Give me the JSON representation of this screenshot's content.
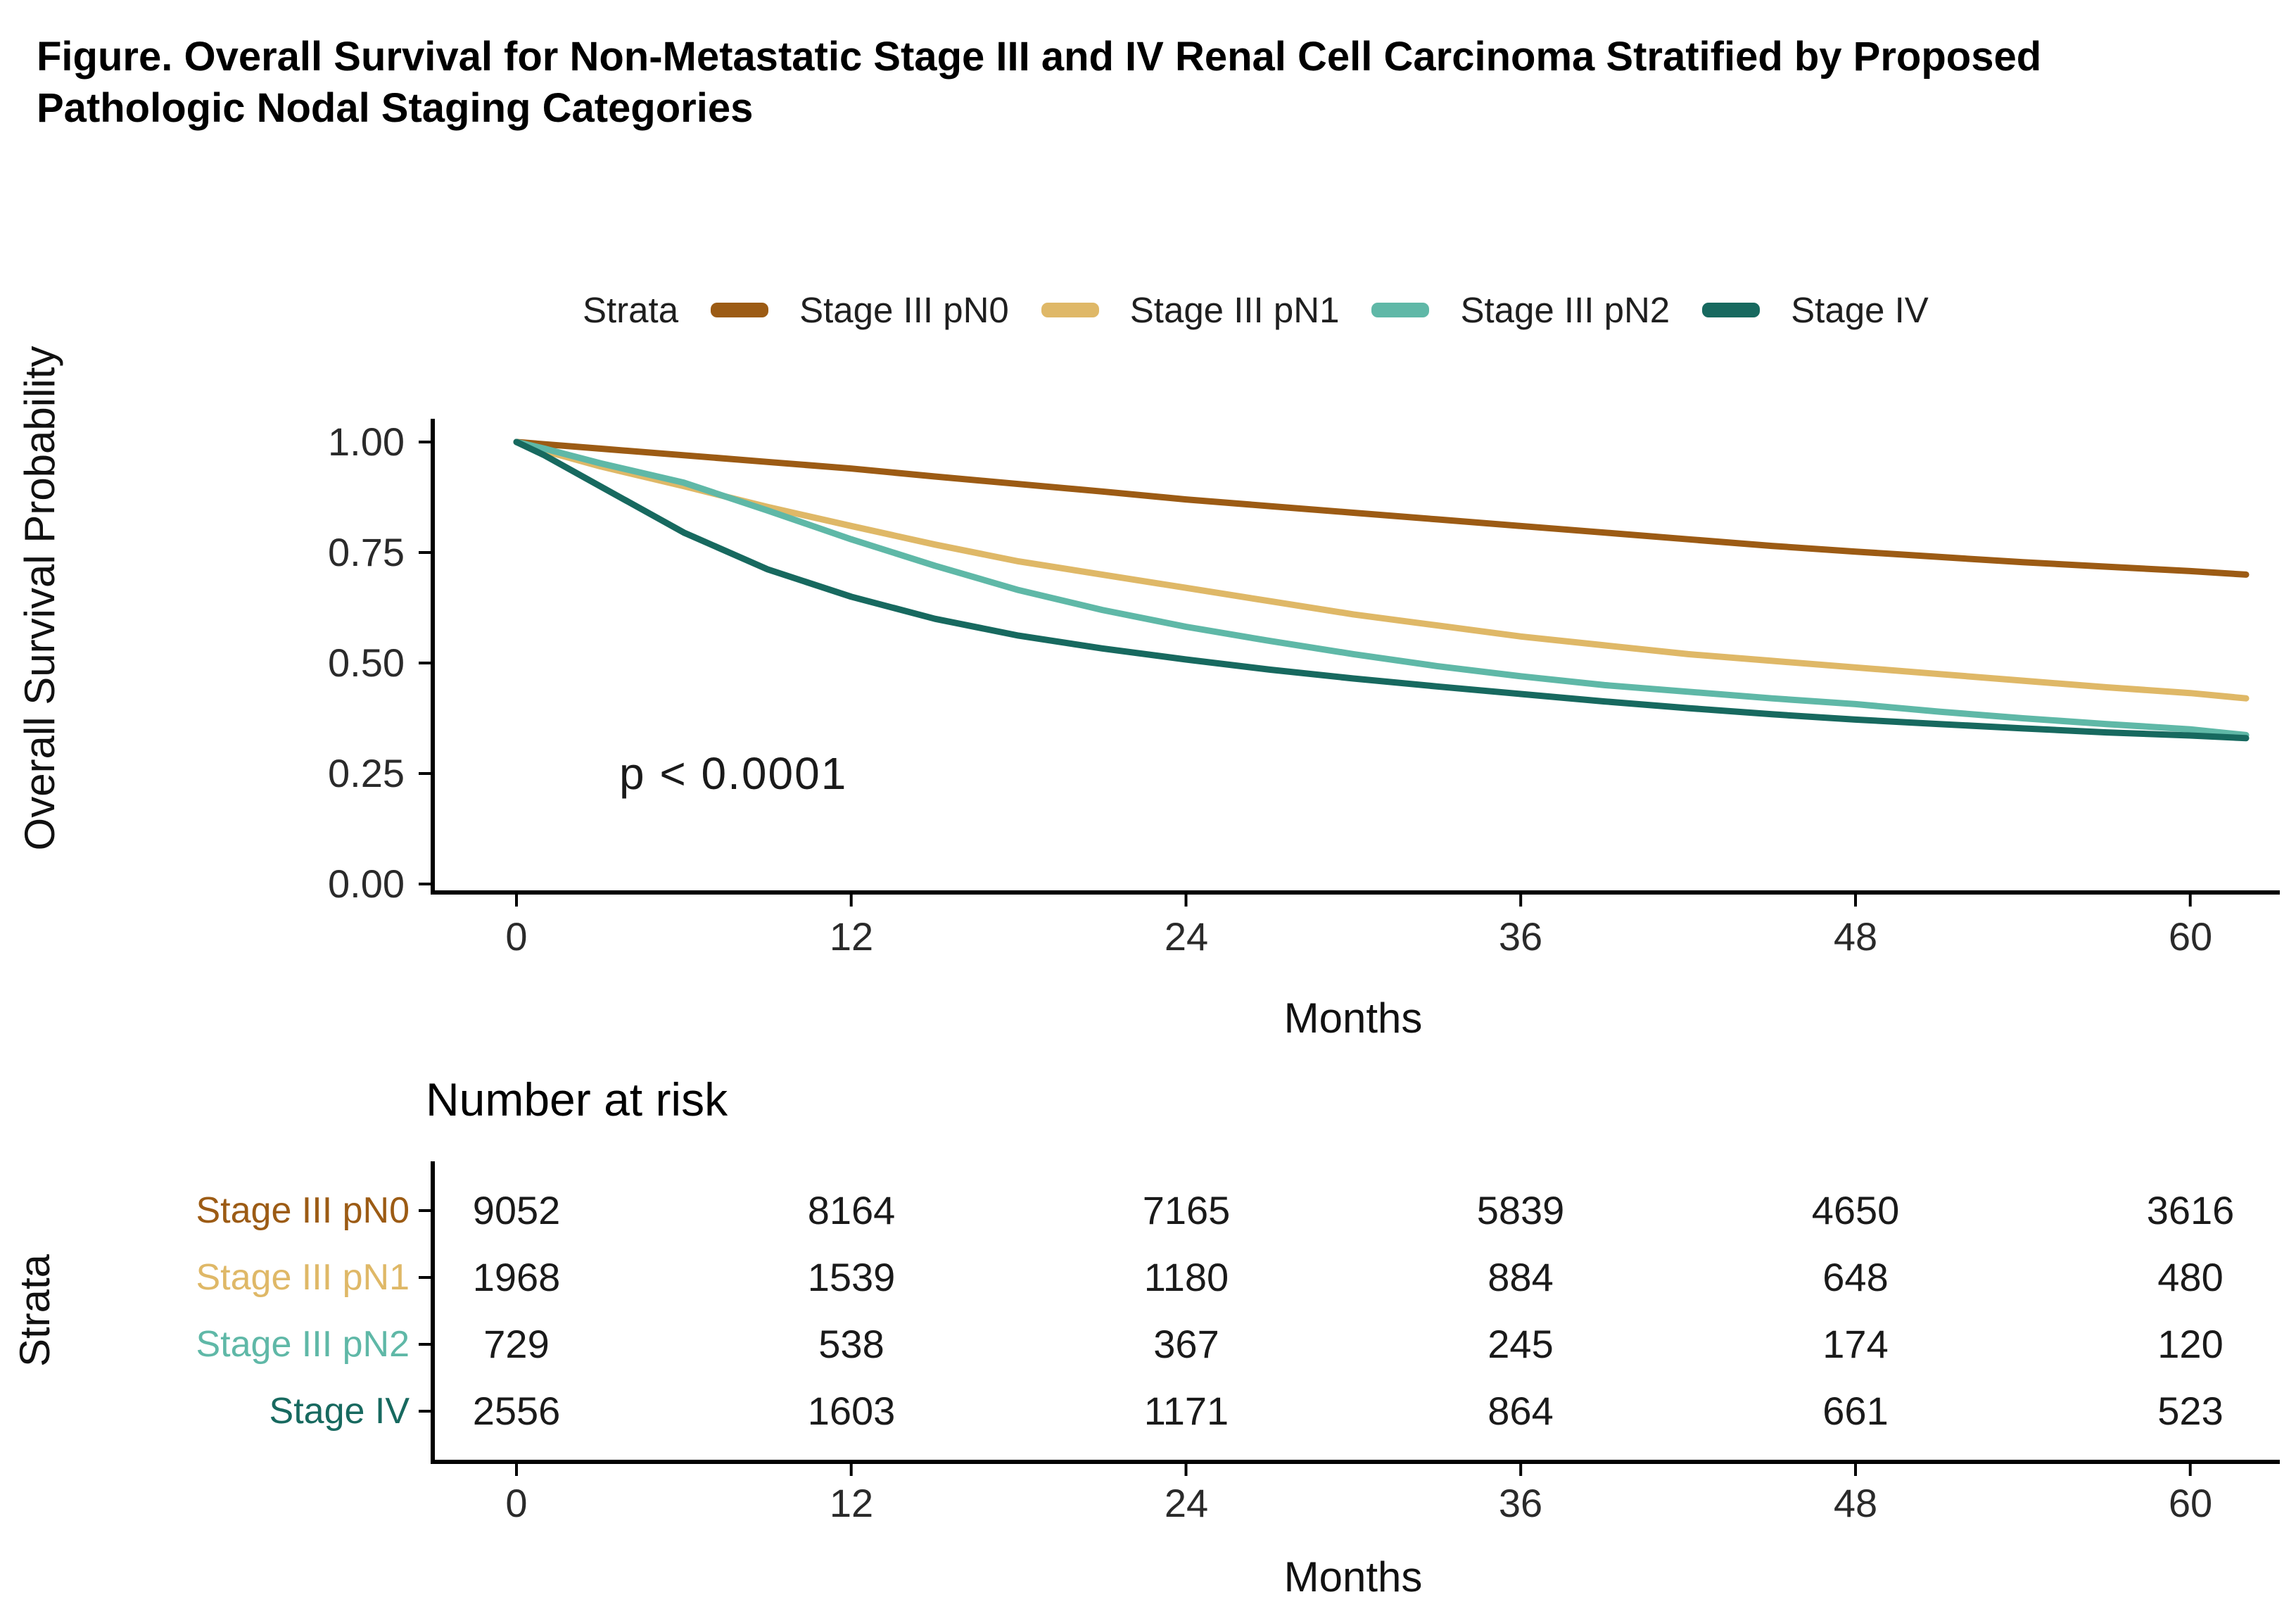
{
  "page_title": "Figure. Overall Survival for Non-Metastatic Stage III and IV Renal Cell Carcinoma Stratified by Proposed Pathologic Nodal Staging Categories",
  "legend": {
    "title": "Strata",
    "items": [
      {
        "label": "Stage III pN0",
        "color": "#9C5B14"
      },
      {
        "label": "Stage III pN1",
        "color": "#DFB867"
      },
      {
        "label": "Stage III pN2",
        "color": "#5FB8A7"
      },
      {
        "label": "Stage IV",
        "color": "#17695F"
      }
    ]
  },
  "pvalue": "p < 0.0001",
  "chart_data": {
    "type": "line",
    "kind": "kaplan-meier-survival",
    "title": "",
    "ylabel": "Overall Survival Probability",
    "xlabel": "Months",
    "xlim": [
      0,
      63.5
    ],
    "ylim": [
      0,
      1
    ],
    "x_ticks": [
      0,
      12,
      24,
      36,
      48,
      60
    ],
    "y_ticks": [
      1.0,
      0.75,
      0.5,
      0.25,
      0.0
    ],
    "x_tick_labels": [
      "0",
      "12",
      "24",
      "36",
      "48",
      "60"
    ],
    "y_tick_labels": [
      "1.00",
      "0.75",
      "0.50",
      "0.25",
      "0.00"
    ],
    "grid": false,
    "legend_position": "top",
    "legend_title": "Strata",
    "annotation": "p < 0.0001",
    "series": [
      {
        "name": "Stage III pN0",
        "color": "#9C5B14",
        "points": [
          [
            0,
            1.0
          ],
          [
            3,
            0.985
          ],
          [
            6,
            0.97
          ],
          [
            9,
            0.955
          ],
          [
            12,
            0.94
          ],
          [
            15,
            0.922
          ],
          [
            18,
            0.905
          ],
          [
            21,
            0.888
          ],
          [
            24,
            0.87
          ],
          [
            27,
            0.855
          ],
          [
            30,
            0.84
          ],
          [
            33,
            0.825
          ],
          [
            36,
            0.81
          ],
          [
            39,
            0.795
          ],
          [
            42,
            0.78
          ],
          [
            45,
            0.765
          ],
          [
            48,
            0.752
          ],
          [
            51,
            0.74
          ],
          [
            54,
            0.728
          ],
          [
            57,
            0.718
          ],
          [
            60,
            0.708
          ],
          [
            62,
            0.7
          ]
        ]
      },
      {
        "name": "Stage III pN1",
        "color": "#DFB867",
        "points": [
          [
            0,
            1.0
          ],
          [
            1,
            0.98
          ],
          [
            3,
            0.945
          ],
          [
            6,
            0.9
          ],
          [
            9,
            0.853
          ],
          [
            12,
            0.81
          ],
          [
            15,
            0.768
          ],
          [
            18,
            0.73
          ],
          [
            21,
            0.7
          ],
          [
            24,
            0.67
          ],
          [
            27,
            0.64
          ],
          [
            30,
            0.61
          ],
          [
            33,
            0.585
          ],
          [
            36,
            0.56
          ],
          [
            39,
            0.54
          ],
          [
            42,
            0.52
          ],
          [
            45,
            0.505
          ],
          [
            48,
            0.49
          ],
          [
            51,
            0.475
          ],
          [
            54,
            0.46
          ],
          [
            57,
            0.445
          ],
          [
            60,
            0.432
          ],
          [
            62,
            0.42
          ]
        ]
      },
      {
        "name": "Stage III pN2",
        "color": "#5FB8A7",
        "points": [
          [
            0,
            1.0
          ],
          [
            1,
            0.985
          ],
          [
            3,
            0.952
          ],
          [
            6,
            0.908
          ],
          [
            9,
            0.845
          ],
          [
            12,
            0.78
          ],
          [
            15,
            0.72
          ],
          [
            18,
            0.665
          ],
          [
            21,
            0.62
          ],
          [
            24,
            0.582
          ],
          [
            27,
            0.55
          ],
          [
            30,
            0.52
          ],
          [
            33,
            0.493
          ],
          [
            36,
            0.47
          ],
          [
            39,
            0.45
          ],
          [
            42,
            0.435
          ],
          [
            45,
            0.42
          ],
          [
            48,
            0.407
          ],
          [
            51,
            0.39
          ],
          [
            54,
            0.375
          ],
          [
            57,
            0.362
          ],
          [
            60,
            0.35
          ],
          [
            62,
            0.337
          ]
        ]
      },
      {
        "name": "Stage IV",
        "color": "#17695F",
        "points": [
          [
            0,
            1.0
          ],
          [
            1,
            0.97
          ],
          [
            3,
            0.9
          ],
          [
            6,
            0.795
          ],
          [
            9,
            0.712
          ],
          [
            12,
            0.65
          ],
          [
            15,
            0.6
          ],
          [
            18,
            0.562
          ],
          [
            21,
            0.533
          ],
          [
            24,
            0.508
          ],
          [
            27,
            0.485
          ],
          [
            30,
            0.465
          ],
          [
            33,
            0.447
          ],
          [
            36,
            0.43
          ],
          [
            39,
            0.413
          ],
          [
            42,
            0.398
          ],
          [
            45,
            0.384
          ],
          [
            48,
            0.372
          ],
          [
            51,
            0.362
          ],
          [
            54,
            0.352
          ],
          [
            57,
            0.343
          ],
          [
            60,
            0.336
          ],
          [
            62,
            0.33
          ]
        ]
      }
    ]
  },
  "risk_table": {
    "title": "Number at risk",
    "axis_label": "Strata",
    "xlabel": "Months",
    "x_tick_labels": [
      "0",
      "12",
      "24",
      "36",
      "48",
      "60"
    ],
    "rows": [
      {
        "label": "Stage III pN0",
        "color": "#9C5B14",
        "values": [
          "9052",
          "8164",
          "7165",
          "5839",
          "4650",
          "3616"
        ]
      },
      {
        "label": "Stage III pN1",
        "color": "#DFB867",
        "values": [
          "1968",
          "1539",
          "1180",
          "884",
          "648",
          "480"
        ]
      },
      {
        "label": "Stage III pN2",
        "color": "#5FB8A7",
        "values": [
          "729",
          "538",
          "367",
          "245",
          "174",
          "120"
        ]
      },
      {
        "label": "Stage IV",
        "color": "#17695F",
        "values": [
          "2556",
          "1603",
          "1171",
          "864",
          "661",
          "523"
        ]
      }
    ]
  }
}
